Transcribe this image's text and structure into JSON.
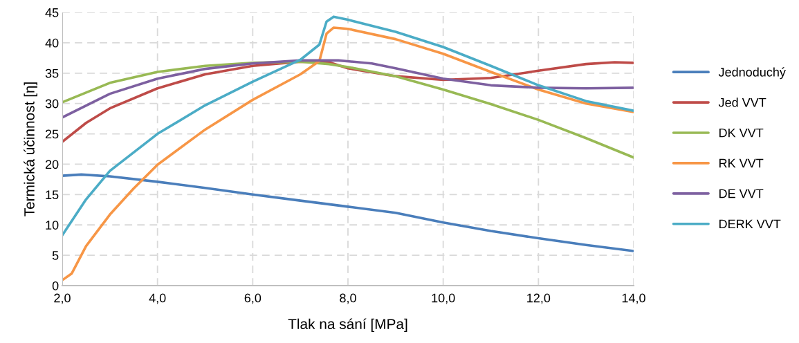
{
  "chart_data": {
    "type": "line",
    "xlabel": "Tlak na sání [MPa]",
    "ylabel": "Termická účinnost [η]",
    "xlim": [
      2,
      14
    ],
    "xticks": [
      {
        "value": 2,
        "label": "2,0"
      },
      {
        "value": 4,
        "label": "4,0"
      },
      {
        "value": 6,
        "label": "6,0"
      },
      {
        "value": 8,
        "label": "8,0"
      },
      {
        "value": 10,
        "label": "10,0"
      },
      {
        "value": 12,
        "label": "12,0"
      },
      {
        "value": 14,
        "label": "14,0"
      }
    ],
    "ylim": [
      0,
      45
    ],
    "yticks": [
      0,
      5,
      10,
      15,
      20,
      25,
      30,
      35,
      40,
      45
    ],
    "grid": true,
    "legend": "right",
    "line_style": "solid",
    "series": [
      {
        "name": "Jednoduchý",
        "color": "#4a7ebb",
        "x": [
          2,
          2.4,
          3,
          4,
          5,
          6,
          7,
          8,
          9,
          10,
          11,
          12,
          13,
          14
        ],
        "values": [
          18.1,
          18.3,
          18.0,
          17.1,
          16.1,
          15.0,
          14.0,
          13.0,
          12.0,
          10.4,
          9.0,
          7.8,
          6.7,
          5.7
        ]
      },
      {
        "name": "Jed VVT",
        "color": "#be4b48",
        "x": [
          2,
          2.5,
          3,
          4,
          5,
          6,
          7,
          7.6,
          8,
          9,
          10,
          11,
          12,
          13,
          13.6,
          14
        ],
        "values": [
          23.7,
          26.8,
          29.2,
          32.5,
          34.8,
          36.2,
          36.9,
          36.8,
          35.8,
          34.5,
          33.9,
          34.2,
          35.4,
          36.5,
          36.8,
          36.7
        ]
      },
      {
        "name": "DK VVT",
        "color": "#98b954",
        "x": [
          2,
          3,
          4,
          5,
          6,
          7,
          7.6,
          8,
          9,
          10,
          11,
          12,
          13,
          14
        ],
        "values": [
          30.2,
          33.4,
          35.2,
          36.2,
          36.7,
          36.9,
          36.5,
          36.0,
          34.5,
          32.3,
          29.9,
          27.3,
          24.3,
          21.1
        ]
      },
      {
        "name": "RK VVT",
        "color": "#f79646",
        "x": [
          2,
          2.2,
          2.5,
          3,
          3.5,
          4,
          5,
          6,
          7,
          7.4,
          7.55,
          7.7,
          8,
          9,
          10,
          11,
          12,
          13,
          14
        ],
        "values": [
          0.9,
          2.0,
          6.5,
          11.7,
          16.0,
          19.9,
          25.7,
          30.6,
          34.8,
          37.0,
          41.5,
          42.5,
          42.3,
          40.6,
          38.2,
          35.2,
          32.3,
          30.0,
          28.6
        ]
      },
      {
        "name": "DE VVT",
        "color": "#7d60a0",
        "x": [
          2,
          3,
          4,
          5,
          6,
          7,
          7.8,
          8.5,
          9,
          10,
          11,
          12,
          13,
          14
        ],
        "values": [
          27.7,
          31.6,
          34.1,
          35.7,
          36.6,
          37.1,
          37.1,
          36.6,
          35.8,
          34.1,
          33.0,
          32.6,
          32.5,
          32.6
        ]
      },
      {
        "name": "DERK VVT",
        "color": "#4bacc6",
        "x": [
          2,
          2.5,
          3,
          4,
          5,
          6,
          7,
          7.4,
          7.55,
          7.7,
          8,
          9,
          10,
          11,
          12,
          13,
          14
        ],
        "values": [
          8.3,
          14.2,
          18.9,
          25.0,
          29.7,
          33.6,
          37.2,
          39.7,
          43.5,
          44.3,
          43.8,
          41.8,
          39.3,
          36.2,
          33.0,
          30.4,
          28.8
        ]
      }
    ]
  }
}
